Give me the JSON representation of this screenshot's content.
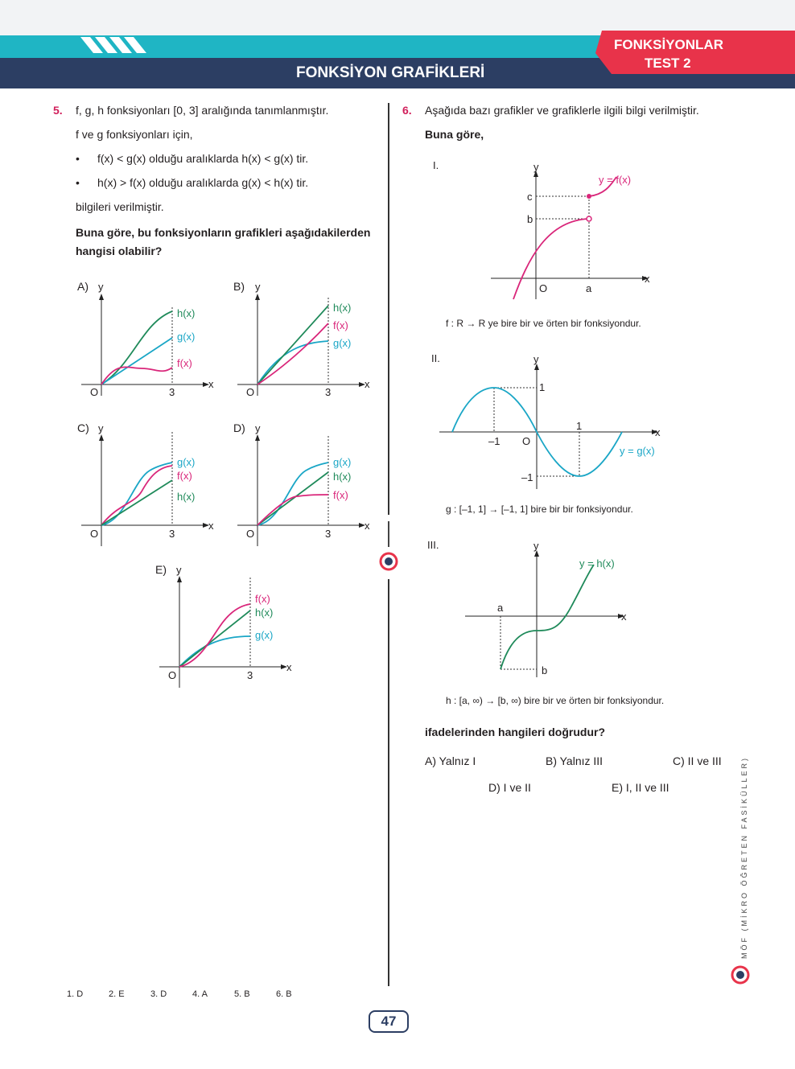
{
  "header": {
    "title": "FONKSİYON GRAFİKLERİ",
    "badge_line1": "FONKSİYONLAR",
    "badge_line2": "TEST 2"
  },
  "q5": {
    "num": "5.",
    "line1": "f, g, h fonksiyonları [0, 3] aralığında tanımlanmıştır.",
    "line2": "f ve g fonksiyonları için,",
    "bullet1": "f(x) < g(x) olduğu aralıklarda h(x) < g(x) tir.",
    "bullet2": "h(x) > f(x) olduğu aralıklarda g(x) < h(x) tir.",
    "line3": "bilgileri verilmiştir.",
    "ask1": "Buna göre, bu fonksiyonların grafikleri aşağıdakilerden",
    "ask2": "hangisi olabilir?",
    "options": {
      "A": "A)",
      "B": "B)",
      "C": "C)",
      "D": "D)",
      "E": "E)"
    },
    "graphA": {
      "l1": "h(x)",
      "l2": "g(x)",
      "l3": "f(x)"
    },
    "graphB": {
      "l1": "h(x)",
      "l2": "f(x)",
      "l3": "g(x)"
    },
    "graphC": {
      "l1": "g(x)",
      "l2": "f(x)",
      "l3": "h(x)"
    },
    "graphD": {
      "l1": "g(x)",
      "l2": "h(x)",
      "l3": "f(x)"
    },
    "graphE": {
      "l1": "f(x)",
      "l2": "h(x)",
      "l3": "g(x)"
    },
    "axis": {
      "y": "y",
      "x": "x",
      "o": "O",
      "three": "3"
    }
  },
  "q6": {
    "num": "6.",
    "line1": "Aşağıda bazı grafikler ve grafiklerle ilgili bilgi verilmiştir.",
    "line2": "Buna göre,",
    "I": {
      "roman": "I.",
      "func": "y = f(x)",
      "c": "c",
      "b": "b",
      "o": "O",
      "a": "a",
      "y": "y",
      "x": "x",
      "desc": "f : R → R ye bire bir ve örten bir fonksiyondur."
    },
    "II": {
      "roman": "II.",
      "func": "y = g(x)",
      "one": "1",
      "minus_one": "–1",
      "o": "O",
      "y": "y",
      "x": "x",
      "desc": "g : [–1, 1] → [–1, 1] bire bir bir fonksiyondur."
    },
    "III": {
      "roman": "III.",
      "func": "y = h(x)",
      "a": "a",
      "b": "b",
      "y": "y",
      "x": "x",
      "desc": "h : [a, ∞) → [b, ∞) bire bir ve örten bir fonksiyondur."
    },
    "ask": "ifadelerinden hangileri doğrudur?",
    "choices": {
      "A": "A) Yalnız I",
      "B": "B) Yalnız III",
      "C": "C) II ve III",
      "D": "D) I ve II",
      "E": "E) I, II ve III"
    }
  },
  "answers": [
    "1. D",
    "2. E",
    "3. D",
    "4. A",
    "5. B",
    "6. B"
  ],
  "page_number": "47",
  "side_text": "MÖF (MİKRO ÖĞRETEN FASİKÜLLER)",
  "colors": {
    "navy": "#2c3e63",
    "teal": "#1fb5c4",
    "red": "#e8334a",
    "magenta": "#d9267a",
    "green": "#1f8a5a",
    "cyan": "#1aa6c6"
  }
}
